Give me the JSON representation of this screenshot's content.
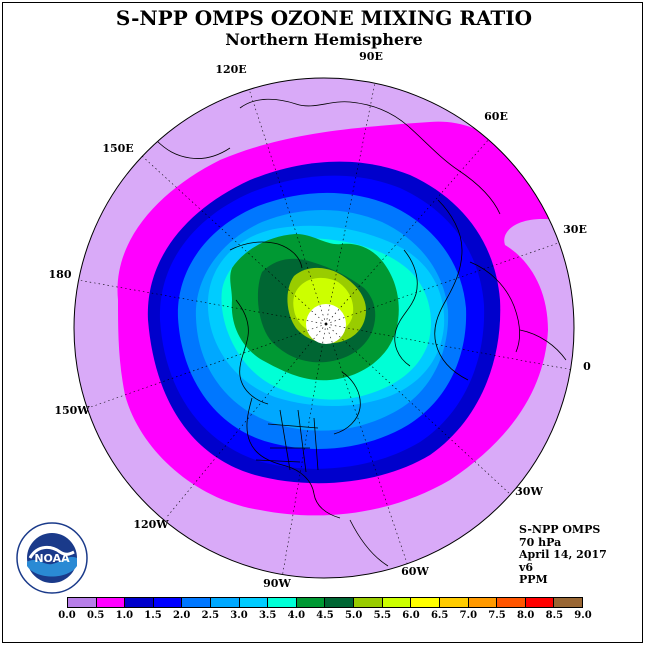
{
  "title": "S-NPP OMPS OZONE MIXING RATIO",
  "subtitle": "Northern Hemisphere",
  "info": {
    "instrument": "S-NPP OMPS",
    "pressure": "70 hPa",
    "date": "April 14, 2017",
    "version": "v6",
    "units": "PPM"
  },
  "logo": {
    "text": "NOAA",
    "icon": "noaa-logo"
  },
  "longitude_labels": [
    "90E",
    "60E",
    "30E",
    "0",
    "30W",
    "60W",
    "90W",
    "120W",
    "150W",
    "180",
    "150E",
    "120E"
  ],
  "colorbar": {
    "ticks": [
      "0.0",
      "0.5",
      "1.0",
      "1.5",
      "2.0",
      "2.5",
      "3.0",
      "3.5",
      "4.0",
      "4.5",
      "5.0",
      "5.5",
      "6.0",
      "6.5",
      "7.0",
      "7.5",
      "8.0",
      "8.5",
      "9.0"
    ],
    "colors": [
      "#b77ee8",
      "#d9aaf8",
      "#ff00ff",
      "#0000cc",
      "#0000ff",
      "#0077ff",
      "#00a8ff",
      "#00ccff",
      "#00ffd6",
      "#009933",
      "#006633",
      "#99cc00",
      "#ccff00",
      "#ffff00",
      "#ffcc00",
      "#ff9900",
      "#ff5500",
      "#ff0000",
      "#996633"
    ]
  },
  "field_levels": {
    "outer_disk": "#d9aaf8",
    "ring_1_0": "#ff00ff",
    "ring_1_5": "#0000cc",
    "ring_2_0": "#0000ff",
    "ring_2_5": "#0077ff",
    "ring_3_0": "#00a8ff",
    "ring_3_5": "#00ccff",
    "ring_4_0": "#00ffd6",
    "ring_4_5": "#009933",
    "ring_5_0": "#006633",
    "max_5_5": "#99cc00",
    "pole_missing": "#ffffff"
  }
}
